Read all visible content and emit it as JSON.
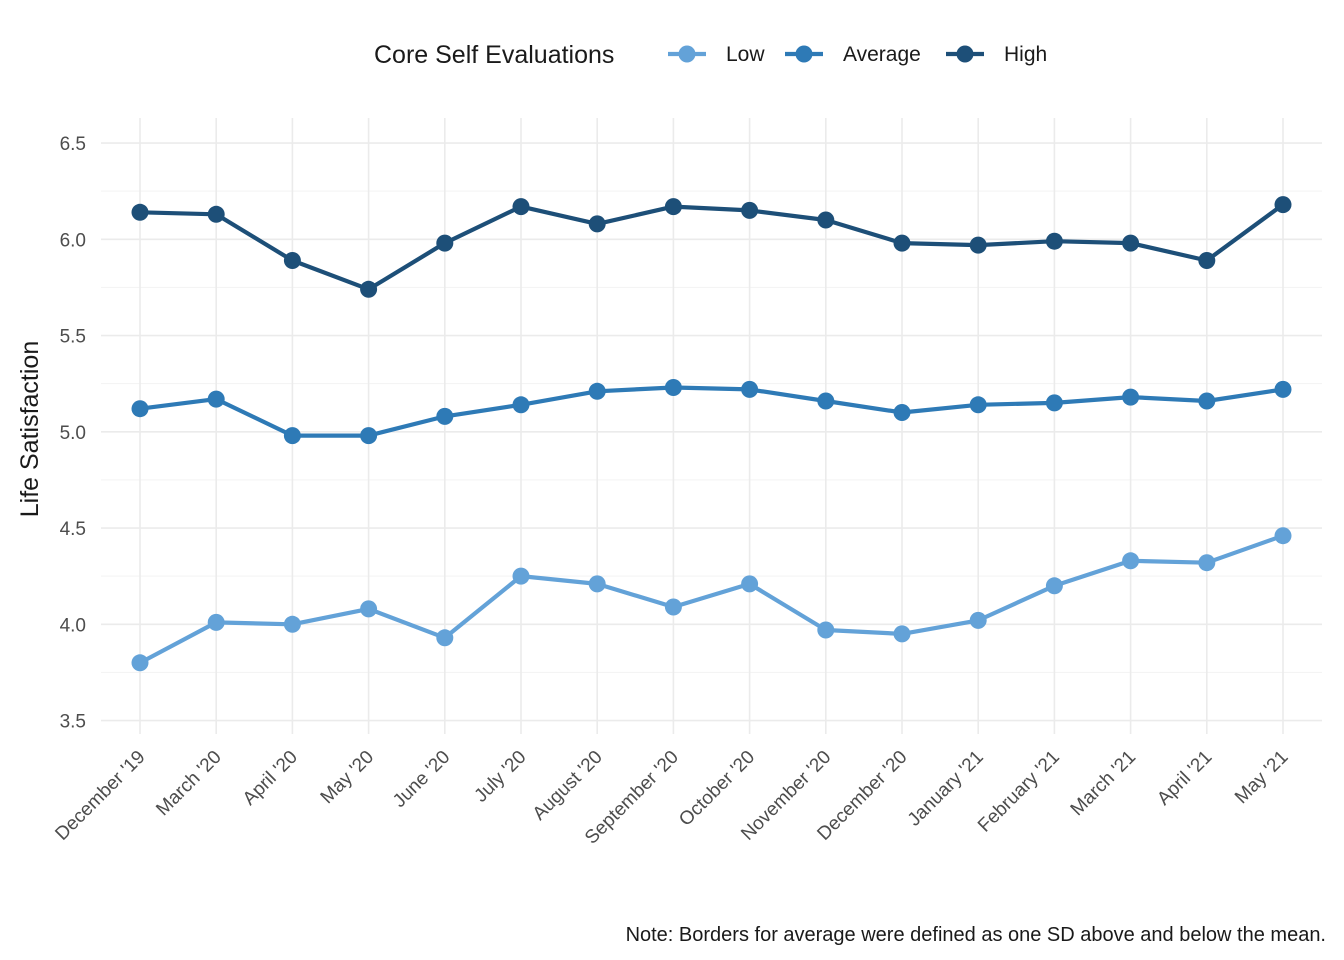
{
  "chart_data": {
    "type": "line",
    "title": "",
    "xlabel": "",
    "ylabel": "Life Satisfaction",
    "ylim": [
      3.43,
      6.63
    ],
    "yticks": [
      3.5,
      4.0,
      4.5,
      5.0,
      5.5,
      6.0,
      6.5
    ],
    "ytick_labels": [
      "3.5",
      "4.0",
      "4.5",
      "5.0",
      "5.5",
      "6.0",
      "6.5"
    ],
    "grid": true,
    "legend": {
      "title": "Core Self Evaluations",
      "position": "top"
    },
    "categories": [
      "December '19",
      "March '20",
      "April '20",
      "May '20",
      "June '20",
      "July '20",
      "August '20",
      "September '20",
      "October '20",
      "November '20",
      "December '20",
      "January '21",
      "February '21",
      "March '21",
      "April '21",
      "May '21"
    ],
    "series": [
      {
        "name": "Low",
        "color": "#63a2d8",
        "values": [
          3.8,
          4.01,
          4.0,
          4.08,
          3.93,
          4.25,
          4.21,
          4.09,
          4.21,
          3.97,
          3.95,
          4.02,
          4.2,
          4.33,
          4.32,
          4.46
        ]
      },
      {
        "name": "Average",
        "color": "#2e7ab6",
        "values": [
          5.12,
          5.17,
          4.98,
          4.98,
          5.08,
          5.14,
          5.21,
          5.23,
          5.22,
          5.16,
          5.1,
          5.14,
          5.15,
          5.18,
          5.16,
          5.22
        ]
      },
      {
        "name": "High",
        "color": "#1d4f78",
        "values": [
          6.14,
          6.13,
          5.89,
          5.74,
          5.98,
          6.17,
          6.08,
          6.17,
          6.15,
          6.1,
          5.98,
          5.97,
          5.99,
          5.98,
          5.89,
          6.18
        ]
      }
    ],
    "caption": "Note: Borders for average were defined as one SD above and below the mean."
  }
}
